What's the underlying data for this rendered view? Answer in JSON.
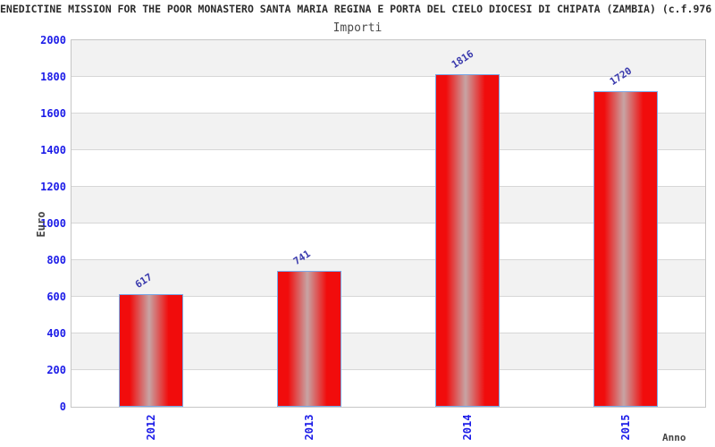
{
  "title": "ENEDICTINE MISSION FOR THE POOR MONASTERO SANTA MARIA REGINA E PORTA DEL CIELO DIOCESI DI CHIPATA (ZAMBIA) (c.f.976",
  "subtitle": "Importi",
  "chart_data": {
    "type": "bar",
    "title": "Importi",
    "categories": [
      "2012",
      "2013",
      "2014",
      "2015"
    ],
    "values": [
      617,
      741,
      1816,
      1720
    ],
    "value_labels": [
      "617",
      "741",
      "1816",
      "1720"
    ],
    "xlabel": "Anno",
    "ylabel": "Euro",
    "ylim": [
      0,
      2000
    ],
    "ytick_step": 200,
    "ytick_labels": [
      "0",
      "200",
      "400",
      "600",
      "800",
      "1000",
      "1200",
      "1400",
      "1600",
      "1800",
      "2000"
    ],
    "legend": "none",
    "grid": "horizontal-bands-alternating"
  },
  "colors": {
    "bar_red": "#f10c0c",
    "bar_highlight": "#c7a4a4",
    "bar_border": "#79a8e8",
    "band_gray": "#f2f2f2",
    "gridline": "#d7d7d7",
    "axis_tick_blue": "#1c1ce8",
    "value_label_navy": "#3a3aad",
    "axis_title_gray": "#444444",
    "title_color": "#2b2b2b"
  }
}
